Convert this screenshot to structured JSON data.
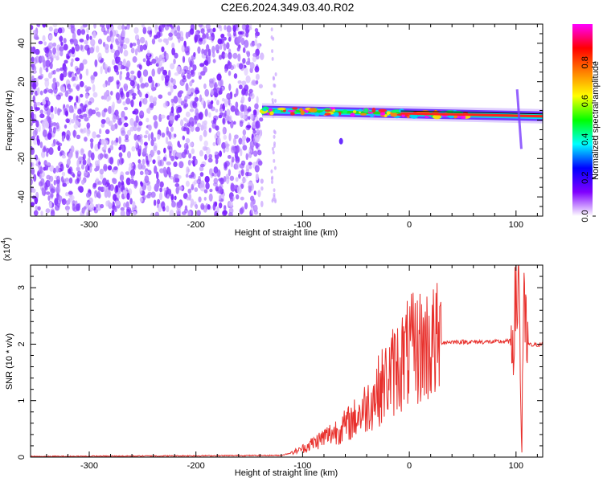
{
  "title": "C2E6.2024.349.03.40.R02",
  "chart_data": [
    {
      "type": "heatmap",
      "title": "C2E6.2024.349.03.40.R02",
      "xlabel": "Height of straight line (km)",
      "ylabel": "Frequency (Hz)",
      "xlim": [
        -355,
        125
      ],
      "ylim": [
        -50,
        50
      ],
      "xticks": [
        -300,
        -200,
        -100,
        0,
        100
      ],
      "yticks": [
        -40,
        -20,
        0,
        20,
        40
      ],
      "colorbar": {
        "label": "Normalized spectral amplitude",
        "range": [
          0,
          1
        ],
        "ticks": [
          "0.0",
          "0.2",
          "0.4",
          "0.6",
          "0.8"
        ],
        "colors": [
          "#ffffff",
          "#8000ff",
          "#0000ff",
          "#00ffff",
          "#00ff00",
          "#ffff00",
          "#ff8000",
          "#ff0000",
          "#ff00ff"
        ]
      },
      "regions": [
        {
          "name": "noise",
          "x_range": [
            -355,
            -138
          ],
          "freq_range": [
            -50,
            50
          ],
          "amplitude": 0.1
        },
        {
          "name": "signal",
          "x_range": [
            -138,
            125
          ],
          "center_freq_start": 5,
          "center_freq_end": 2,
          "amplitude": 0.9
        }
      ]
    },
    {
      "type": "line",
      "xlabel": "Height of straight line (km)",
      "ylabel": "SNR (10 * v/v)",
      "yscale_label": "(x10",
      "yscale_exp": "4",
      "xlim": [
        -355,
        125
      ],
      "ylim": [
        0,
        3.4
      ],
      "xticks": [
        -300,
        -200,
        -100,
        0,
        100
      ],
      "yticks": [
        0,
        1,
        2,
        3
      ],
      "color": "#e8302c",
      "series": [
        {
          "x": [
            -355,
            -120,
            -110,
            -100,
            -90,
            -80,
            -70,
            -60,
            -50,
            -40,
            -30,
            -20,
            -10,
            0,
            10,
            20,
            30,
            40,
            60,
            80,
            95,
            100,
            103,
            105,
            107,
            110,
            115,
            125
          ],
          "values": [
            0.01,
            0.03,
            0.08,
            0.15,
            0.25,
            0.35,
            0.45,
            0.55,
            0.7,
            0.9,
            1.15,
            1.4,
            1.65,
            1.85,
            1.95,
            2.0,
            2.03,
            2.04,
            2.04,
            2.04,
            2.05,
            2.6,
            3.3,
            0.1,
            2.5,
            2.0,
            1.98,
            2.0
          ]
        }
      ]
    }
  ]
}
